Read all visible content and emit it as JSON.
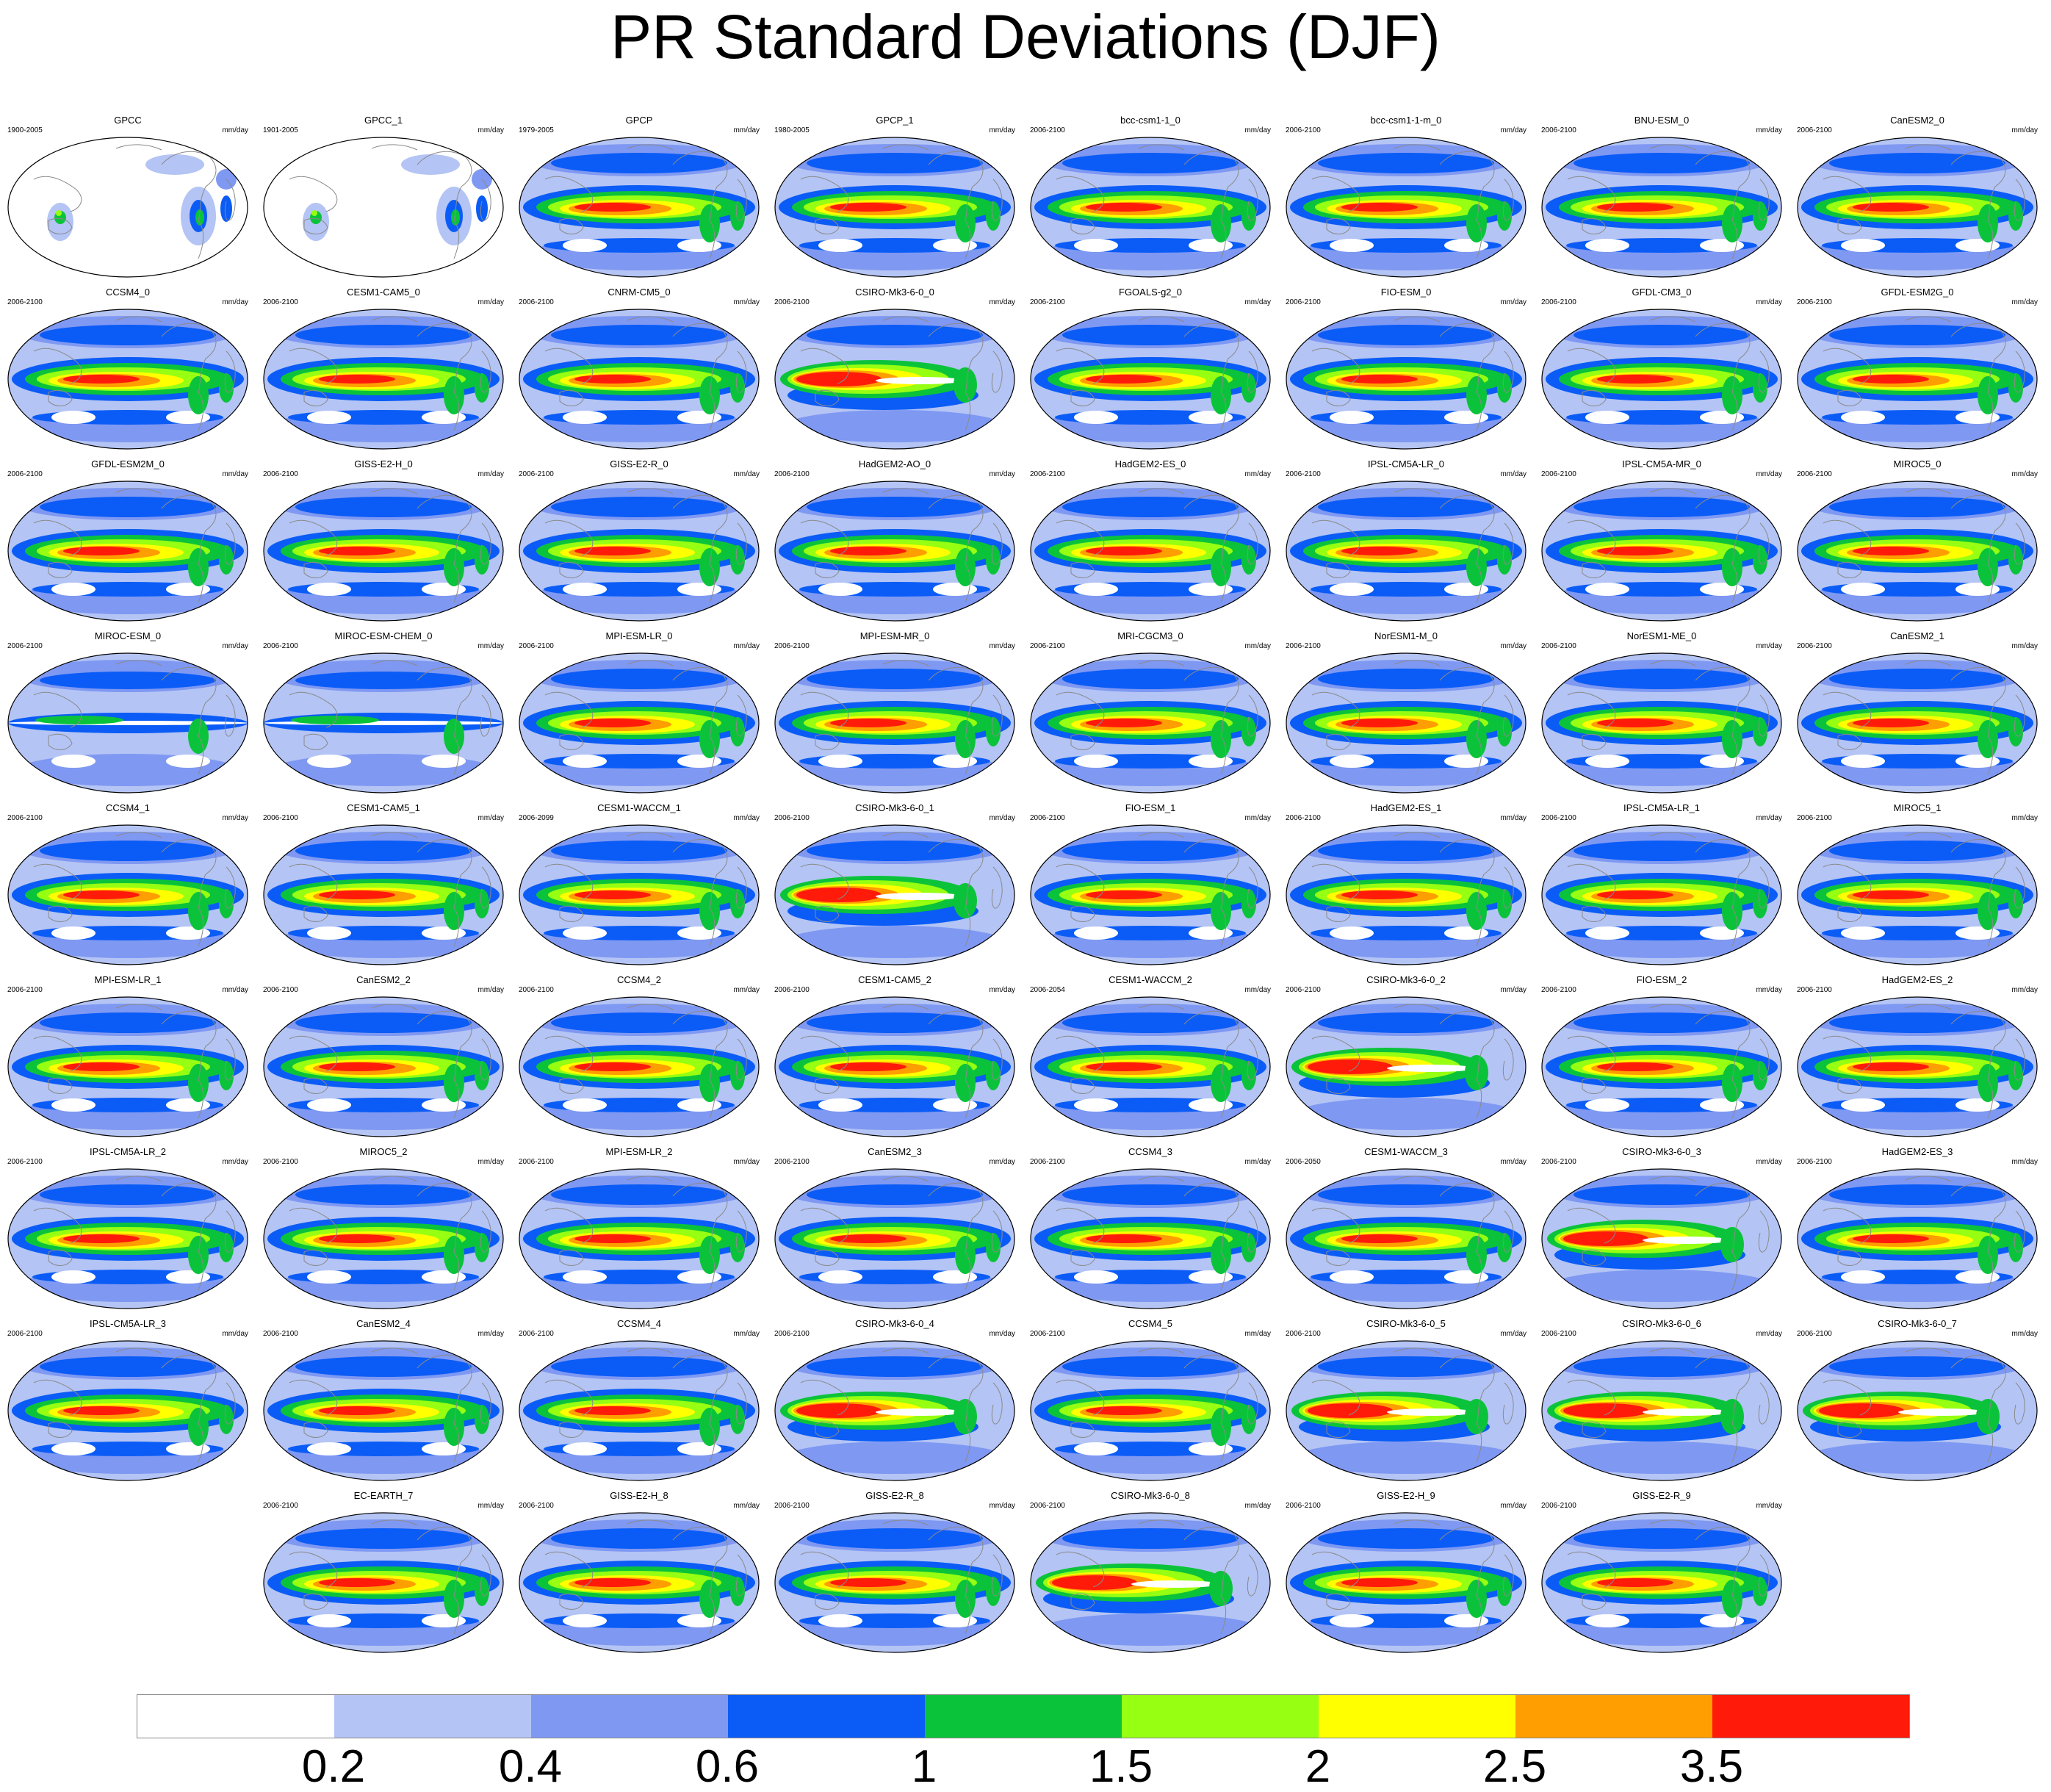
{
  "title": "PR Standard Deviations (DJF)",
  "units": "mm/day",
  "colors": {
    "c0": "#ffffff",
    "c1": "#b4c4f4",
    "c2": "#7f98f2",
    "c3": "#0b5cf6",
    "c4": "#0bc33a",
    "c5": "#96ff12",
    "c6": "#ffff00",
    "c7": "#ff9e00",
    "c8": "#ff1a0a",
    "coast": "#8a8a8a"
  },
  "colorbar": {
    "labels": [
      "0.2",
      "0.4",
      "0.6",
      "1",
      "1.5",
      "2",
      "2.5",
      "3.5"
    ]
  },
  "panels": [
    {
      "title": "GPCC",
      "years": "1900-2005",
      "kind": "obs"
    },
    {
      "title": "GPCC_1",
      "years": "1901-2005",
      "kind": "obs"
    },
    {
      "title": "GPCP",
      "years": "1979-2005",
      "kind": "sat"
    },
    {
      "title": "GPCP_1",
      "years": "1980-2005",
      "kind": "sat"
    },
    {
      "title": "bcc-csm1-1_0",
      "years": "2006-2100",
      "kind": "model"
    },
    {
      "title": "bcc-csm1-1-m_0",
      "years": "2006-2100",
      "kind": "model"
    },
    {
      "title": "BNU-ESM_0",
      "years": "2006-2100",
      "kind": "model"
    },
    {
      "title": "CanESM2_0",
      "years": "2006-2100",
      "kind": "model"
    },
    {
      "title": "CCSM4_0",
      "years": "2006-2100",
      "kind": "model"
    },
    {
      "title": "CESM1-CAM5_0",
      "years": "2006-2100",
      "kind": "model"
    },
    {
      "title": "CNRM-CM5_0",
      "years": "2006-2100",
      "kind": "model"
    },
    {
      "title": "CSIRO-Mk3-6-0_0",
      "years": "2006-2100",
      "kind": "csiro"
    },
    {
      "title": "FGOALS-g2_0",
      "years": "2006-2100",
      "kind": "model"
    },
    {
      "title": "FIO-ESM_0",
      "years": "2006-2100",
      "kind": "model"
    },
    {
      "title": "GFDL-CM3_0",
      "years": "2006-2100",
      "kind": "model"
    },
    {
      "title": "GFDL-ESM2G_0",
      "years": "2006-2100",
      "kind": "model"
    },
    {
      "title": "GFDL-ESM2M_0",
      "years": "2006-2100",
      "kind": "model"
    },
    {
      "title": "GISS-E2-H_0",
      "years": "2006-2100",
      "kind": "model"
    },
    {
      "title": "GISS-E2-R_0",
      "years": "2006-2100",
      "kind": "model"
    },
    {
      "title": "HadGEM2-AO_0",
      "years": "2006-2100",
      "kind": "model"
    },
    {
      "title": "HadGEM2-ES_0",
      "years": "2006-2100",
      "kind": "model"
    },
    {
      "title": "IPSL-CM5A-LR_0",
      "years": "2006-2100",
      "kind": "model"
    },
    {
      "title": "IPSL-CM5A-MR_0",
      "years": "2006-2100",
      "kind": "model"
    },
    {
      "title": "MIROC5_0",
      "years": "2006-2100",
      "kind": "model"
    },
    {
      "title": "MIROC-ESM_0",
      "years": "2006-2100",
      "kind": "weak"
    },
    {
      "title": "MIROC-ESM-CHEM_0",
      "years": "2006-2100",
      "kind": "weak"
    },
    {
      "title": "MPI-ESM-LR_0",
      "years": "2006-2100",
      "kind": "model"
    },
    {
      "title": "MPI-ESM-MR_0",
      "years": "2006-2100",
      "kind": "model"
    },
    {
      "title": "MRI-CGCM3_0",
      "years": "2006-2100",
      "kind": "model"
    },
    {
      "title": "NorESM1-M_0",
      "years": "2006-2100",
      "kind": "model"
    },
    {
      "title": "NorESM1-ME_0",
      "years": "2006-2100",
      "kind": "model"
    },
    {
      "title": "CanESM2_1",
      "years": "2006-2100",
      "kind": "model"
    },
    {
      "title": "CCSM4_1",
      "years": "2006-2100",
      "kind": "model"
    },
    {
      "title": "CESM1-CAM5_1",
      "years": "2006-2100",
      "kind": "model"
    },
    {
      "title": "CESM1-WACCM_1",
      "years": "2006-2099",
      "kind": "model"
    },
    {
      "title": "CSIRO-Mk3-6-0_1",
      "years": "2006-2100",
      "kind": "csiro"
    },
    {
      "title": "FIO-ESM_1",
      "years": "2006-2100",
      "kind": "model"
    },
    {
      "title": "HadGEM2-ES_1",
      "years": "2006-2100",
      "kind": "model"
    },
    {
      "title": "IPSL-CM5A-LR_1",
      "years": "2006-2100",
      "kind": "model"
    },
    {
      "title": "MIROC5_1",
      "years": "2006-2100",
      "kind": "model"
    },
    {
      "title": "MPI-ESM-LR_1",
      "years": "2006-2100",
      "kind": "model"
    },
    {
      "title": "CanESM2_2",
      "years": "2006-2100",
      "kind": "model"
    },
    {
      "title": "CCSM4_2",
      "years": "2006-2100",
      "kind": "model"
    },
    {
      "title": "CESM1-CAM5_2",
      "years": "2006-2100",
      "kind": "model"
    },
    {
      "title": "CESM1-WACCM_2",
      "years": "2006-2054",
      "kind": "model"
    },
    {
      "title": "CSIRO-Mk3-6-0_2",
      "years": "2006-2100",
      "kind": "csiro"
    },
    {
      "title": "FIO-ESM_2",
      "years": "2006-2100",
      "kind": "model"
    },
    {
      "title": "HadGEM2-ES_2",
      "years": "2006-2100",
      "kind": "model"
    },
    {
      "title": "IPSL-CM5A-LR_2",
      "years": "2006-2100",
      "kind": "model"
    },
    {
      "title": "MIROC5_2",
      "years": "2006-2100",
      "kind": "model"
    },
    {
      "title": "MPI-ESM-LR_2",
      "years": "2006-2100",
      "kind": "model"
    },
    {
      "title": "CanESM2_3",
      "years": "2006-2100",
      "kind": "model"
    },
    {
      "title": "CCSM4_3",
      "years": "2006-2100",
      "kind": "model"
    },
    {
      "title": "CESM1-WACCM_3",
      "years": "2006-2050",
      "kind": "model"
    },
    {
      "title": "CSIRO-Mk3-6-0_3",
      "years": "2006-2100",
      "kind": "csiro"
    },
    {
      "title": "HadGEM2-ES_3",
      "years": "2006-2100",
      "kind": "model"
    },
    {
      "title": "IPSL-CM5A-LR_3",
      "years": "2006-2100",
      "kind": "model"
    },
    {
      "title": "CanESM2_4",
      "years": "2006-2100",
      "kind": "model"
    },
    {
      "title": "CCSM4_4",
      "years": "2006-2100",
      "kind": "model"
    },
    {
      "title": "CSIRO-Mk3-6-0_4",
      "years": "2006-2100",
      "kind": "csiro"
    },
    {
      "title": "CCSM4_5",
      "years": "2006-2100",
      "kind": "model"
    },
    {
      "title": "CSIRO-Mk3-6-0_5",
      "years": "2006-2100",
      "kind": "csiro"
    },
    {
      "title": "CSIRO-Mk3-6-0_6",
      "years": "2006-2100",
      "kind": "csiro"
    },
    {
      "title": "CSIRO-Mk3-6-0_7",
      "years": "2006-2100",
      "kind": "csiro"
    },
    {
      "title": "EC-EARTH_7",
      "years": "2006-2100",
      "kind": "model"
    },
    {
      "title": "GISS-E2-H_8",
      "years": "2006-2100",
      "kind": "model"
    },
    {
      "title": "GISS-E2-R_8",
      "years": "2006-2100",
      "kind": "model"
    },
    {
      "title": "CSIRO-Mk3-6-0_8",
      "years": "2006-2100",
      "kind": "csiro"
    },
    {
      "title": "GISS-E2-H_9",
      "years": "2006-2100",
      "kind": "model"
    },
    {
      "title": "GISS-E2-R_9",
      "years": "2006-2100",
      "kind": "model"
    }
  ]
}
